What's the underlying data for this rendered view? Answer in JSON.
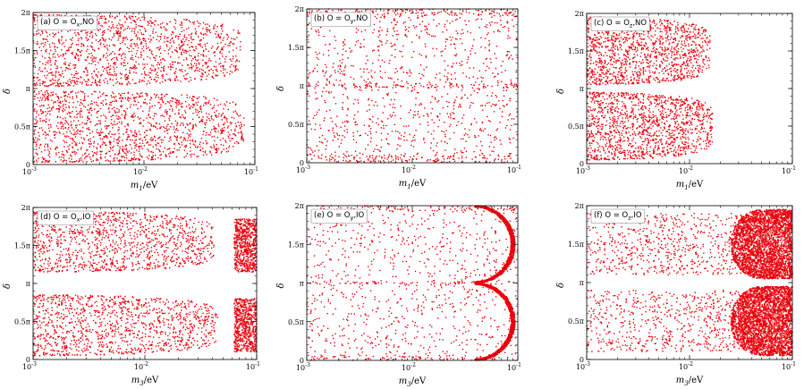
{
  "chart_data": [
    {
      "type": "scatter",
      "panel_label": "(a) O = O",
      "label_subscript": "x",
      "label_suffix": ",NO",
      "xlabel_main": "m",
      "xlabel_sub": "1",
      "xlabel_unit": "/eV",
      "ylabel": "δ",
      "x_scale": "log",
      "xlim": [
        0.001,
        0.1
      ],
      "ylim_pi": [
        0,
        2
      ],
      "x_ticks": [
        {
          "value": 0.001,
          "base": "10",
          "exp": "-3"
        },
        {
          "value": 0.01,
          "base": "10",
          "exp": "-2"
        },
        {
          "value": 0.1,
          "base": "10",
          "exp": "-1"
        }
      ],
      "y_ticks": [
        {
          "value_pi": 0,
          "label": "0"
        },
        {
          "value_pi": 0.5,
          "label": "0.5π"
        },
        {
          "value_pi": 1,
          "label": "π"
        },
        {
          "value_pi": 1.5,
          "label": "1.5π"
        },
        {
          "value_pi": 2,
          "label": "2π"
        }
      ],
      "marker_color": "#e8000b",
      "regions": [
        {
          "shape": "lobe",
          "delta_range_pi": [
            1.03,
            1.97
          ],
          "x_max": 0.075,
          "density": 1.0
        },
        {
          "shape": "lobe",
          "delta_range_pi": [
            0.03,
            0.97
          ],
          "x_max": 0.08,
          "density": 1.0
        }
      ]
    },
    {
      "type": "scatter",
      "panel_label": "(b) O = O",
      "label_subscript": "y",
      "label_suffix": ",NO",
      "xlabel_main": "m",
      "xlabel_sub": "1",
      "xlabel_unit": "/eV",
      "ylabel": "δ",
      "x_scale": "log",
      "xlim": [
        0.001,
        0.1
      ],
      "ylim_pi": [
        0,
        2
      ],
      "x_ticks": [
        {
          "value": 0.001,
          "base": "10",
          "exp": "-3"
        },
        {
          "value": 0.01,
          "base": "10",
          "exp": "-2"
        },
        {
          "value": 0.1,
          "base": "10",
          "exp": "-1"
        }
      ],
      "y_ticks": [
        {
          "value_pi": 0,
          "label": "0"
        },
        {
          "value_pi": 0.5,
          "label": "0.5π"
        },
        {
          "value_pi": 1,
          "label": "π"
        },
        {
          "value_pi": 1.5,
          "label": "1.5π"
        },
        {
          "value_pi": 2,
          "label": "2π"
        }
      ],
      "marker_color": "#e8000b",
      "regions": [
        {
          "shape": "band",
          "delta_range_pi": [
            0.97,
            1.03
          ],
          "x_max": 0.1,
          "density": 1.0
        },
        {
          "shape": "band",
          "delta_range_pi": [
            1.9,
            2.0
          ],
          "x_max": 0.1,
          "density": 0.8
        },
        {
          "shape": "band",
          "delta_range_pi": [
            0.0,
            0.1
          ],
          "x_max": 0.1,
          "density": 0.8
        },
        {
          "shape": "band",
          "delta_range_pi": [
            0.0,
            2.0
          ],
          "x_max": 0.1,
          "density": 0.35
        }
      ]
    },
    {
      "type": "scatter",
      "panel_label": "(c) O = O",
      "label_subscript": "z",
      "label_suffix": ",NO",
      "xlabel_main": "m",
      "xlabel_sub": "1",
      "xlabel_unit": "/eV",
      "ylabel": "δ",
      "x_scale": "log",
      "xlim": [
        0.001,
        0.1
      ],
      "ylim_pi": [
        0,
        2
      ],
      "x_ticks": [
        {
          "value": 0.001,
          "base": "10",
          "exp": "-3"
        },
        {
          "value": 0.01,
          "base": "10",
          "exp": "-2"
        },
        {
          "value": 0.1,
          "base": "10",
          "exp": "-1"
        }
      ],
      "y_ticks": [
        {
          "value_pi": 0,
          "label": "0"
        },
        {
          "value_pi": 0.5,
          "label": "0.5π"
        },
        {
          "value_pi": 1,
          "label": "π"
        },
        {
          "value_pi": 1.5,
          "label": "1.5π"
        },
        {
          "value_pi": 2,
          "label": "2π"
        }
      ],
      "marker_color": "#e8000b",
      "regions": [
        {
          "shape": "lobe",
          "delta_range_pi": [
            1.05,
            1.95
          ],
          "x_max": 0.016,
          "density": 1.0
        },
        {
          "shape": "lobe",
          "delta_range_pi": [
            0.05,
            0.95
          ],
          "x_max": 0.017,
          "density": 1.0
        }
      ]
    },
    {
      "type": "scatter",
      "panel_label": "(d) O = O",
      "label_subscript": "x",
      "label_suffix": ",IO",
      "xlabel_main": "m",
      "xlabel_sub": "3",
      "xlabel_unit": "/eV",
      "ylabel": "δ",
      "x_scale": "log",
      "xlim": [
        0.001,
        0.1
      ],
      "ylim_pi": [
        0,
        2
      ],
      "x_ticks": [
        {
          "value": 0.001,
          "base": "10",
          "exp": "-3"
        },
        {
          "value": 0.01,
          "base": "10",
          "exp": "-2"
        },
        {
          "value": 0.1,
          "base": "10",
          "exp": "-1"
        }
      ],
      "y_ticks": [
        {
          "value_pi": 0,
          "label": "0"
        },
        {
          "value_pi": 0.5,
          "label": "0.5π"
        },
        {
          "value_pi": 1,
          "label": "π"
        },
        {
          "value_pi": 1.5,
          "label": "1.5π"
        },
        {
          "value_pi": 2,
          "label": "2π"
        }
      ],
      "marker_color": "#e8000b",
      "regions": [
        {
          "shape": "lobe",
          "delta_range_pi": [
            1.15,
            1.95
          ],
          "x_max": 0.042,
          "density": 1.0
        },
        {
          "shape": "lobe",
          "delta_range_pi": [
            0.05,
            0.85
          ],
          "x_max": 0.045,
          "density": 1.0
        },
        {
          "shape": "rect",
          "delta_range_pi": [
            1.15,
            1.85
          ],
          "x_min": 0.063,
          "x_max": 0.1,
          "density": 0.6
        },
        {
          "shape": "rect",
          "delta_range_pi": [
            0.1,
            0.8
          ],
          "x_min": 0.063,
          "x_max": 0.1,
          "density": 0.6
        }
      ]
    },
    {
      "type": "scatter",
      "panel_label": "(e) O = O",
      "label_subscript": "y",
      "label_suffix": ",IO",
      "xlabel_main": "m",
      "xlabel_sub": "3",
      "xlabel_unit": "/eV",
      "ylabel": "δ",
      "x_scale": "log",
      "xlim": [
        0.001,
        0.1
      ],
      "ylim_pi": [
        0,
        2
      ],
      "x_ticks": [
        {
          "value": 0.001,
          "base": "10",
          "exp": "-3"
        },
        {
          "value": 0.01,
          "base": "10",
          "exp": "-2"
        },
        {
          "value": 0.1,
          "base": "10",
          "exp": "-1"
        }
      ],
      "y_ticks": [
        {
          "value_pi": 0,
          "label": "0"
        },
        {
          "value_pi": 0.5,
          "label": "0.5π"
        },
        {
          "value_pi": 1,
          "label": "π"
        },
        {
          "value_pi": 1.5,
          "label": "1.5π"
        },
        {
          "value_pi": 2,
          "label": "2π"
        }
      ],
      "marker_color": "#e8000b",
      "regions": [
        {
          "shape": "band",
          "delta_range_pi": [
            0.98,
            1.02
          ],
          "x_max": 0.1,
          "density": 1.0
        },
        {
          "shape": "band",
          "delta_range_pi": [
            1.93,
            2.0
          ],
          "x_max": 0.1,
          "density": 0.7
        },
        {
          "shape": "band",
          "delta_range_pi": [
            0.0,
            0.07
          ],
          "x_max": 0.1,
          "density": 0.7
        },
        {
          "shape": "arc",
          "delta_range_pi": [
            1.0,
            2.0
          ],
          "x_min": 0.04,
          "x_max": 0.09,
          "density": 1.0
        },
        {
          "shape": "arc",
          "delta_range_pi": [
            0.0,
            1.0
          ],
          "x_min": 0.04,
          "x_max": 0.09,
          "density": 1.0
        },
        {
          "shape": "band",
          "delta_range_pi": [
            0.0,
            2.0
          ],
          "x_max": 0.1,
          "density": 0.3
        }
      ]
    },
    {
      "type": "scatter",
      "panel_label": "(f) O = O",
      "label_subscript": "z",
      "label_suffix": ",IO",
      "xlabel_main": "m",
      "xlabel_sub": "3",
      "xlabel_unit": "/eV",
      "ylabel": "δ",
      "x_scale": "log",
      "xlim": [
        0.001,
        0.1
      ],
      "ylim_pi": [
        0,
        2
      ],
      "x_ticks": [
        {
          "value": 0.001,
          "base": "10",
          "exp": "-3"
        },
        {
          "value": 0.01,
          "base": "10",
          "exp": "-2"
        },
        {
          "value": 0.1,
          "base": "10",
          "exp": "-1"
        }
      ],
      "y_ticks": [
        {
          "value_pi": 0,
          "label": "0"
        },
        {
          "value_pi": 0.5,
          "label": "0.5π"
        },
        {
          "value_pi": 1,
          "label": "π"
        },
        {
          "value_pi": 1.5,
          "label": "1.5π"
        },
        {
          "value_pi": 2,
          "label": "2π"
        }
      ],
      "marker_color": "#e8000b",
      "regions": [
        {
          "shape": "rect",
          "delta_range_pi": [
            1.1,
            1.9
          ],
          "x_min": 0.001,
          "x_max": 0.1,
          "density": 0.7
        },
        {
          "shape": "rect",
          "delta_range_pi": [
            0.1,
            0.9
          ],
          "x_min": 0.001,
          "x_max": 0.1,
          "density": 0.7
        },
        {
          "shape": "blob",
          "delta_range_pi": [
            1.05,
            1.95
          ],
          "x_min": 0.025,
          "x_max": 0.1,
          "density": 2.2
        },
        {
          "shape": "blob",
          "delta_range_pi": [
            0.05,
            0.95
          ],
          "x_min": 0.025,
          "x_max": 0.1,
          "density": 2.2
        }
      ]
    }
  ]
}
